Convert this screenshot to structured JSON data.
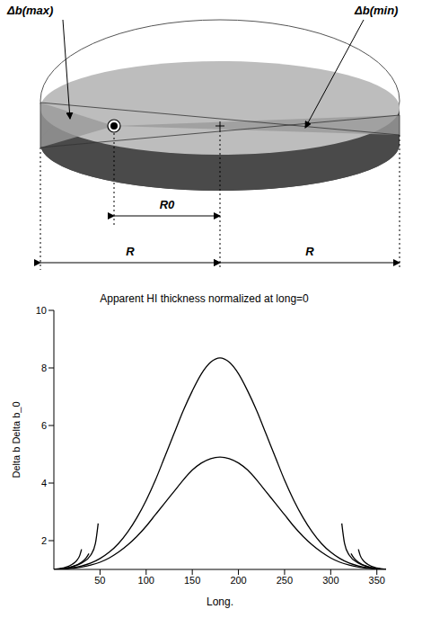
{
  "diagram": {
    "labels": {
      "delta_b_max": "Δb(max)",
      "delta_b_min": "Δb(min)",
      "r0": "R0",
      "r_left": "R",
      "r_right": "R"
    }
  },
  "chart_data": {
    "type": "line",
    "title": "Apparent HI thickness normalized at long=0",
    "x_label": "Long.",
    "y_label": "Delta b Delta b_0",
    "xlim": [
      0,
      360
    ],
    "ylim": [
      1,
      10
    ],
    "xticks": [
      50,
      100,
      150,
      200,
      250,
      300,
      350
    ],
    "yticks": [
      2,
      4,
      6,
      8,
      10
    ],
    "grid": false,
    "series": [
      {
        "color": "#000000",
        "x": [
          0,
          10,
          20,
          30,
          40,
          50,
          60,
          70,
          80,
          90,
          100,
          110,
          120,
          130,
          140,
          150,
          160,
          170,
          180,
          190,
          200,
          210,
          220,
          230,
          240,
          250,
          260,
          270,
          280,
          290,
          300,
          310,
          320,
          330,
          340,
          350,
          360
        ],
        "values": [
          1,
          1.02,
          1.06,
          1.12,
          1.22,
          1.38,
          1.6,
          1.9,
          2.3,
          2.8,
          3.4,
          4.1,
          4.9,
          5.7,
          6.5,
          7.2,
          7.8,
          8.2,
          8.35,
          8.2,
          7.8,
          7.2,
          6.5,
          5.7,
          4.9,
          4.1,
          3.4,
          2.8,
          2.3,
          1.9,
          1.6,
          1.38,
          1.22,
          1.12,
          1.06,
          1.02,
          1
        ]
      },
      {
        "color": "#000000",
        "x": [
          0,
          10,
          20,
          30,
          40,
          50,
          60,
          70,
          80,
          90,
          100,
          110,
          120,
          130,
          140,
          150,
          160,
          170,
          180,
          190,
          200,
          210,
          220,
          230,
          240,
          250,
          260,
          270,
          280,
          290,
          300,
          310,
          320,
          330,
          340,
          350,
          360
        ],
        "values": [
          1,
          1.01,
          1.04,
          1.08,
          1.15,
          1.25,
          1.4,
          1.6,
          1.85,
          2.15,
          2.5,
          2.9,
          3.3,
          3.7,
          4.1,
          4.45,
          4.7,
          4.85,
          4.9,
          4.85,
          4.7,
          4.45,
          4.1,
          3.7,
          3.3,
          2.9,
          2.5,
          2.15,
          1.85,
          1.6,
          1.4,
          1.25,
          1.15,
          1.08,
          1.04,
          1.01,
          1
        ]
      },
      {
        "color": "#000000",
        "x": [
          0,
          10,
          20,
          25,
          28,
          30
        ],
        "values": [
          1,
          1.05,
          1.18,
          1.32,
          1.48,
          1.7
        ]
      },
      {
        "color": "#000000",
        "x": [
          0,
          10,
          20,
          30,
          35,
          38
        ],
        "values": [
          1,
          1.03,
          1.1,
          1.25,
          1.4,
          1.55
        ]
      },
      {
        "color": "#000000",
        "x": [
          0,
          10,
          20,
          30,
          40,
          45,
          48
        ],
        "values": [
          1,
          1.03,
          1.1,
          1.22,
          1.5,
          1.9,
          2.6
        ]
      },
      {
        "color": "#000000",
        "x": [
          330,
          332,
          335,
          340,
          350,
          360
        ],
        "values": [
          1.7,
          1.48,
          1.32,
          1.18,
          1.05,
          1
        ]
      },
      {
        "color": "#000000",
        "x": [
          322,
          325,
          330,
          340,
          350,
          360
        ],
        "values": [
          1.55,
          1.4,
          1.25,
          1.1,
          1.03,
          1
        ]
      },
      {
        "color": "#000000",
        "x": [
          312,
          315,
          320,
          330,
          340,
          350,
          360
        ],
        "values": [
          2.6,
          1.9,
          1.5,
          1.22,
          1.1,
          1.03,
          1
        ]
      }
    ]
  }
}
